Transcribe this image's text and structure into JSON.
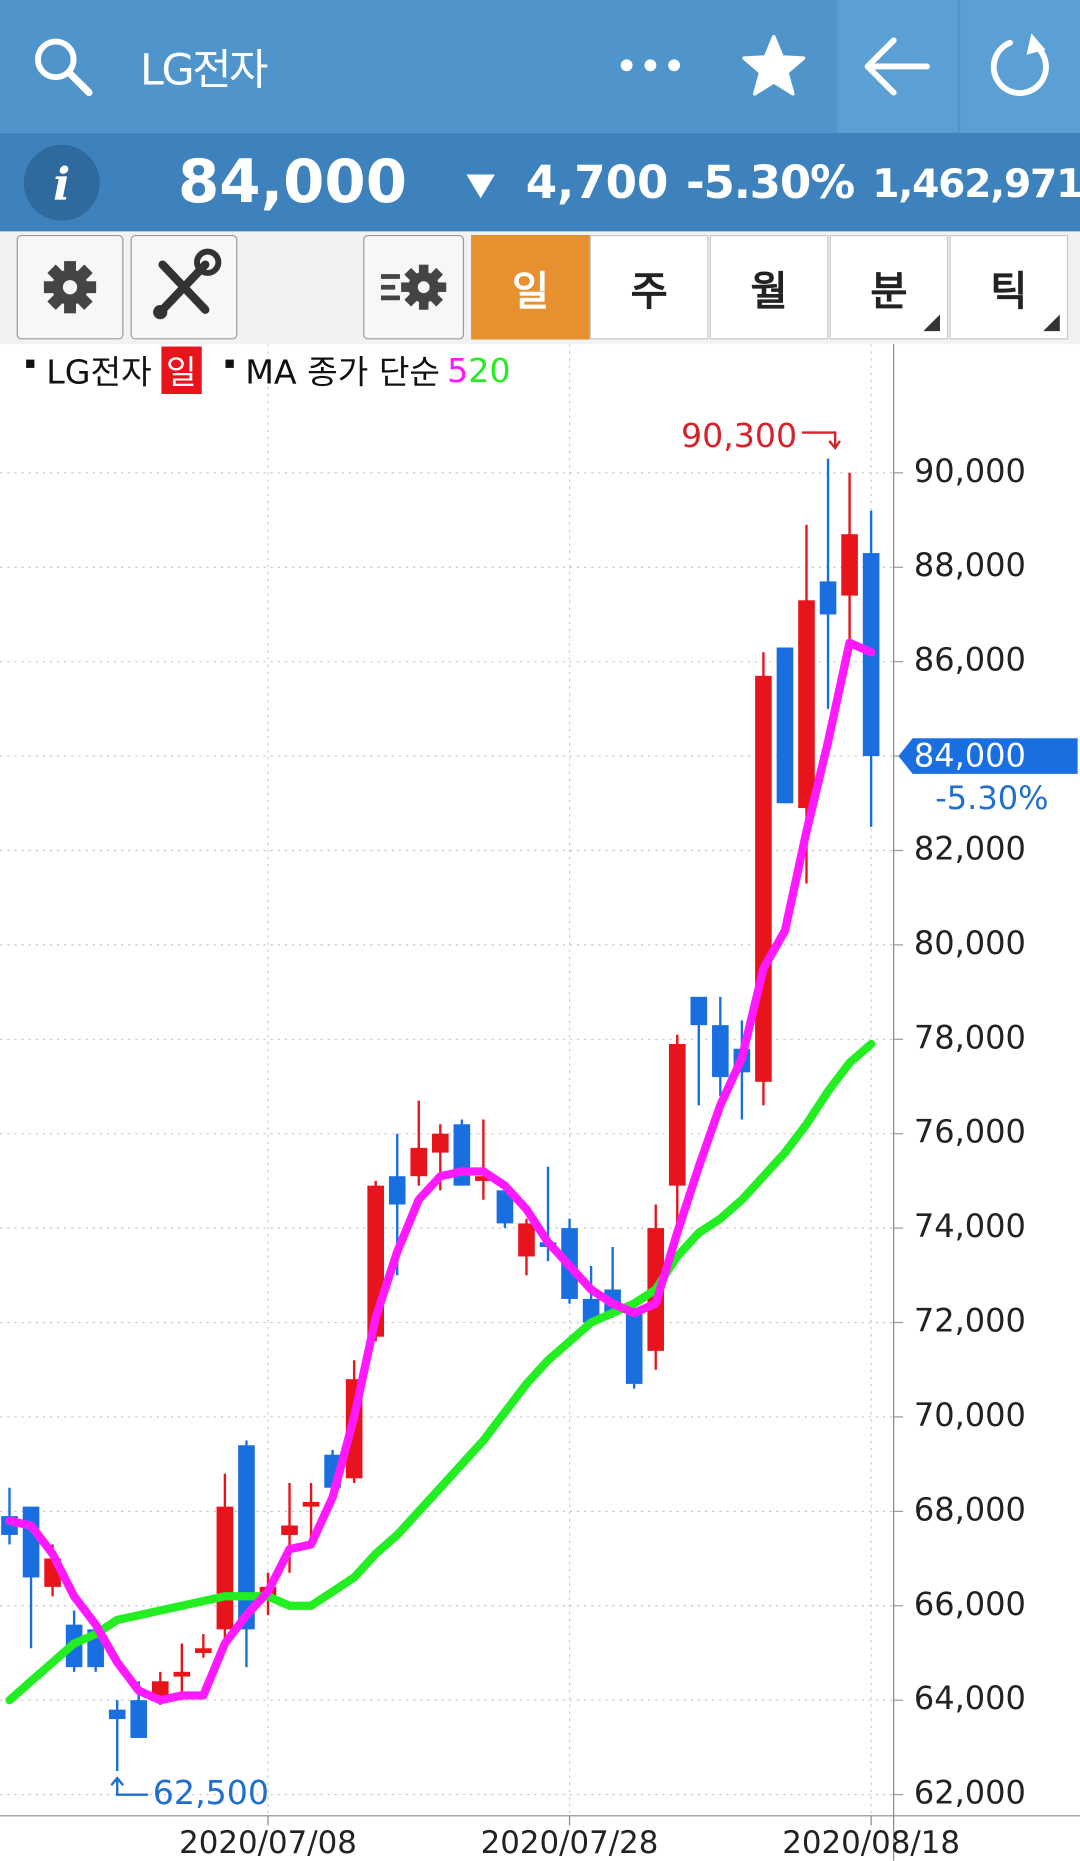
{
  "header": {
    "title": "LG전자",
    "info_icon": "i",
    "price": "84,000",
    "change": "4,700",
    "change_rate": "-5.30%",
    "volume": "1,462,971"
  },
  "tabs": [
    "일",
    "주",
    "월",
    "분",
    "틱"
  ],
  "chart_data": {
    "type": "candlestick",
    "legend": {
      "period": "일",
      "indicator": "MA 종가 단순"
    },
    "categories": [
      null,
      null,
      null,
      null,
      null,
      null,
      null,
      null,
      null,
      null,
      null,
      null,
      "2020/07/08",
      null,
      null,
      null,
      null,
      null,
      null,
      null,
      null,
      null,
      null,
      null,
      null,
      null,
      "2020/07/28",
      null,
      null,
      null,
      null,
      null,
      null,
      null,
      null,
      null,
      null,
      null,
      null,
      null,
      "2020/08/18"
    ],
    "series": [
      {
        "name": "LG전자",
        "type": "candlestick",
        "up_color": "#e8141c",
        "down_color": "#1a6fe0",
        "open": [
          67900,
          68100,
          66400,
          65600,
          65500,
          63800,
          64000,
          64000,
          64500,
          65000,
          65500,
          69400,
          66200,
          67500,
          68100,
          69200,
          68700,
          71700,
          75100,
          75100,
          75600,
          76200,
          75000,
          74800,
          73400,
          73700,
          74000,
          72500,
          72700,
          72300,
          71400,
          74900,
          78900,
          78300,
          77800,
          77100,
          86300,
          82900,
          87700,
          87400,
          88300
        ],
        "high": [
          68500,
          68100,
          67300,
          65900,
          65600,
          64000,
          64400,
          64600,
          65200,
          65400,
          68800,
          69500,
          66700,
          68600,
          68600,
          69300,
          71200,
          75000,
          76000,
          76700,
          76200,
          76300,
          76300,
          74900,
          74200,
          75300,
          74200,
          73200,
          73600,
          72500,
          74500,
          78100,
          78900,
          78900,
          78400,
          86200,
          86300,
          88900,
          90300,
          90000,
          89200
        ],
        "low": [
          67300,
          65100,
          66200,
          64600,
          64600,
          62500,
          63200,
          63900,
          64000,
          64900,
          65200,
          64700,
          65800,
          66700,
          67300,
          68200,
          68600,
          71600,
          73000,
          74900,
          74800,
          74900,
          74600,
          74000,
          73000,
          73300,
          72400,
          71900,
          72100,
          70600,
          71000,
          74000,
          76600,
          76800,
          76300,
          76600,
          83000,
          81300,
          85000,
          86300,
          82500
        ],
        "close": [
          67500,
          66600,
          67000,
          64700,
          64700,
          63600,
          63200,
          64400,
          64600,
          65100,
          68100,
          65500,
          66400,
          67700,
          68200,
          68500,
          70800,
          74900,
          74500,
          75700,
          76000,
          74900,
          75100,
          74100,
          74100,
          73600,
          72500,
          72000,
          72200,
          70700,
          74000,
          77900,
          78300,
          77200,
          77300,
          85700,
          83000,
          87300,
          87000,
          88700,
          84000
        ]
      },
      {
        "name": "5",
        "type": "line",
        "color": "#ff19ff",
        "values": [
          67800,
          67700,
          67100,
          66200,
          65600,
          64800,
          64200,
          64000,
          64100,
          64100,
          65200,
          65800,
          66300,
          67200,
          67300,
          68300,
          70000,
          72100,
          73500,
          74600,
          75100,
          75200,
          75200,
          74900,
          74400,
          73700,
          73200,
          72700,
          72400,
          72200,
          72400,
          73900,
          75300,
          76600,
          77600,
          79500,
          80300,
          82400,
          84300,
          86400,
          86200
        ]
      },
      {
        "name": "20",
        "type": "line",
        "color": "#22ee22",
        "values": [
          64000,
          64400,
          64800,
          65200,
          65400,
          65700,
          65800,
          65900,
          66000,
          66100,
          66200,
          66200,
          66200,
          66000,
          66000,
          66300,
          66600,
          67100,
          67500,
          68000,
          68500,
          69000,
          69500,
          70100,
          70700,
          71200,
          71600,
          72000,
          72200,
          72400,
          72700,
          73400,
          73900,
          74200,
          74600,
          75100,
          75600,
          76200,
          76900,
          77500,
          77900
        ]
      }
    ],
    "ylim": [
      61550,
      92600
    ],
    "yticks": [
      {
        "value": 62000,
        "label": "62,000"
      },
      {
        "value": 64000,
        "label": "64,000"
      },
      {
        "value": 66000,
        "label": "66,000"
      },
      {
        "value": 68000,
        "label": "68,000"
      },
      {
        "value": 70000,
        "label": "70,000"
      },
      {
        "value": 72000,
        "label": "72,000"
      },
      {
        "value": 74000,
        "label": "74,000"
      },
      {
        "value": 76000,
        "label": "76,000"
      },
      {
        "value": 78000,
        "label": "78,000"
      },
      {
        "value": 80000,
        "label": "80,000"
      },
      {
        "value": 82000,
        "label": "82,000"
      },
      {
        "value": 84000,
        "label": "84,000"
      },
      {
        "value": 86000,
        "label": "86,000"
      },
      {
        "value": 88000,
        "label": "88,000"
      },
      {
        "value": 90000,
        "label": "90,000"
      }
    ],
    "grid": true,
    "high_marker": {
      "value": 90300,
      "label": "90,300",
      "color": "#d4242a"
    },
    "low_marker": {
      "value": 62500,
      "label": "62,500",
      "color": "#1f6fcf"
    },
    "last_price": {
      "value": 84000,
      "label": "84,000",
      "color": "#1a6fe0"
    },
    "last_change": {
      "value": -5.3,
      "label": "-5.30%",
      "color": "#1f6fcf"
    }
  }
}
